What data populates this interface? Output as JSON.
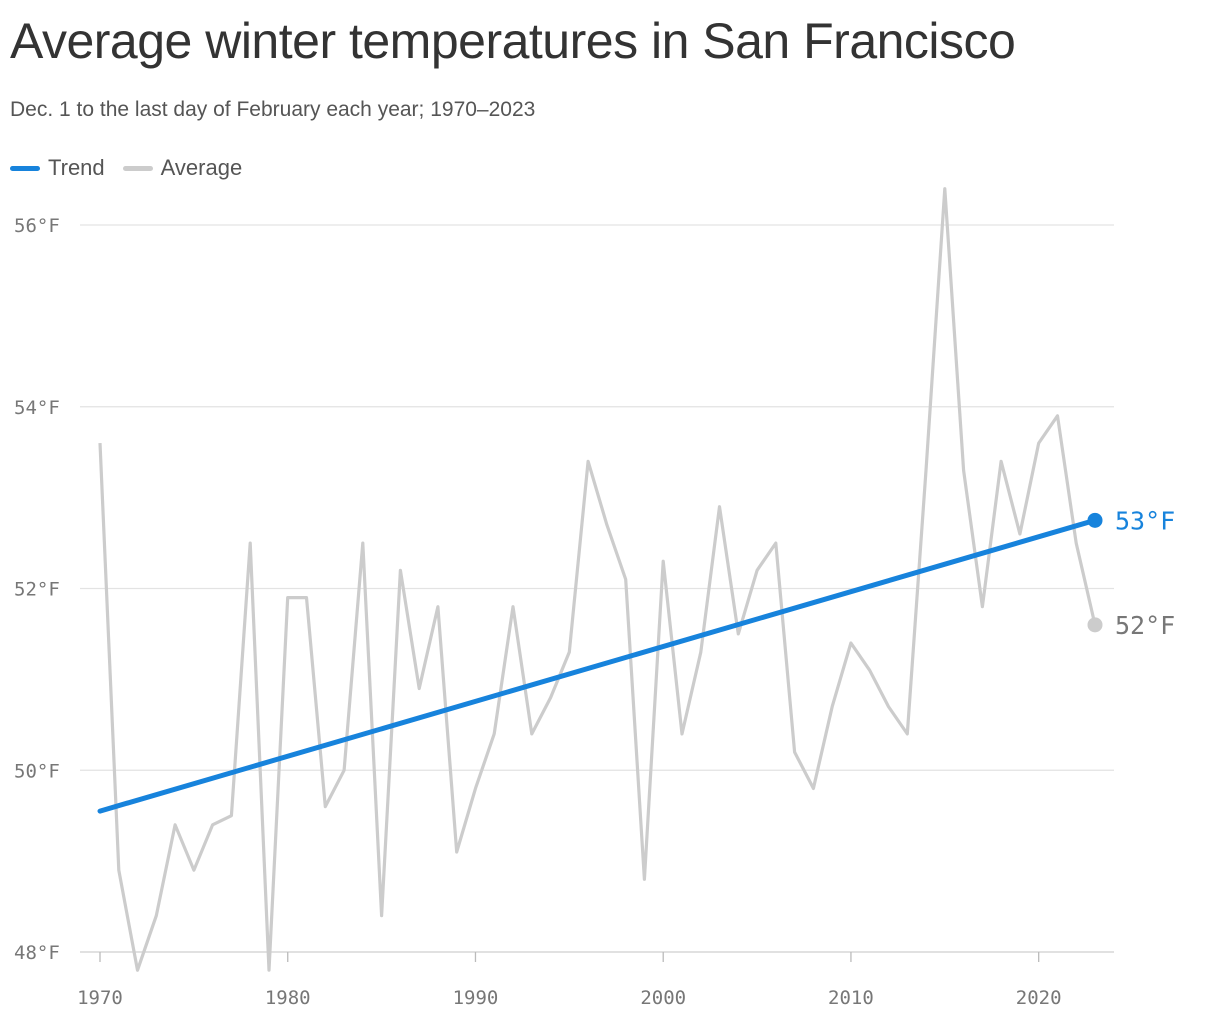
{
  "chart_data": {
    "type": "line",
    "title": "Average winter temperatures in San Francisco",
    "subtitle": "Dec. 1 to the last day of February each year; 1970–2023",
    "x_ticks": [
      1970,
      1980,
      1990,
      2000,
      2010,
      2020
    ],
    "x_tick_labels": [
      "1970",
      "1980",
      "1990",
      "2000",
      "2010",
      "2020"
    ],
    "y_ticks": [
      48,
      50,
      52,
      54,
      56
    ],
    "y_tick_labels": [
      "48°F",
      "50°F",
      "52°F",
      "54°F",
      "56°F"
    ],
    "xlim": [
      1970,
      2023
    ],
    "ylim": [
      48,
      56
    ],
    "grid": true,
    "legend_position": "top-left",
    "series": [
      {
        "name": "Trend",
        "color": "#1783dc",
        "x": [
          1970,
          2023
        ],
        "values": [
          49.55,
          52.75
        ],
        "end_label": "53°F"
      },
      {
        "name": "Average",
        "color": "#cccccc",
        "x": [
          1970,
          1971,
          1972,
          1973,
          1974,
          1975,
          1976,
          1977,
          1978,
          1979,
          1980,
          1981,
          1982,
          1983,
          1984,
          1985,
          1986,
          1987,
          1988,
          1989,
          1990,
          1991,
          1992,
          1993,
          1994,
          1995,
          1996,
          1997,
          1998,
          1999,
          2000,
          2001,
          2002,
          2003,
          2004,
          2005,
          2006,
          2007,
          2008,
          2009,
          2010,
          2011,
          2012,
          2013,
          2014,
          2015,
          2016,
          2017,
          2018,
          2019,
          2020,
          2021,
          2022,
          2023
        ],
        "values": [
          53.6,
          48.9,
          47.8,
          48.4,
          49.4,
          48.9,
          49.4,
          49.5,
          52.5,
          47.8,
          51.9,
          51.9,
          49.6,
          50.0,
          52.5,
          48.4,
          52.2,
          50.9,
          51.8,
          49.1,
          49.8,
          50.4,
          51.8,
          50.4,
          50.8,
          51.3,
          53.4,
          52.7,
          52.1,
          48.8,
          52.3,
          50.4,
          51.3,
          52.9,
          51.5,
          52.2,
          52.5,
          50.2,
          49.8,
          50.7,
          51.4,
          51.1,
          50.7,
          50.4,
          53.3,
          56.4,
          53.3,
          51.8,
          53.4,
          52.6,
          53.6,
          53.9,
          52.5,
          51.6
        ],
        "end_label": "52°F"
      }
    ]
  }
}
